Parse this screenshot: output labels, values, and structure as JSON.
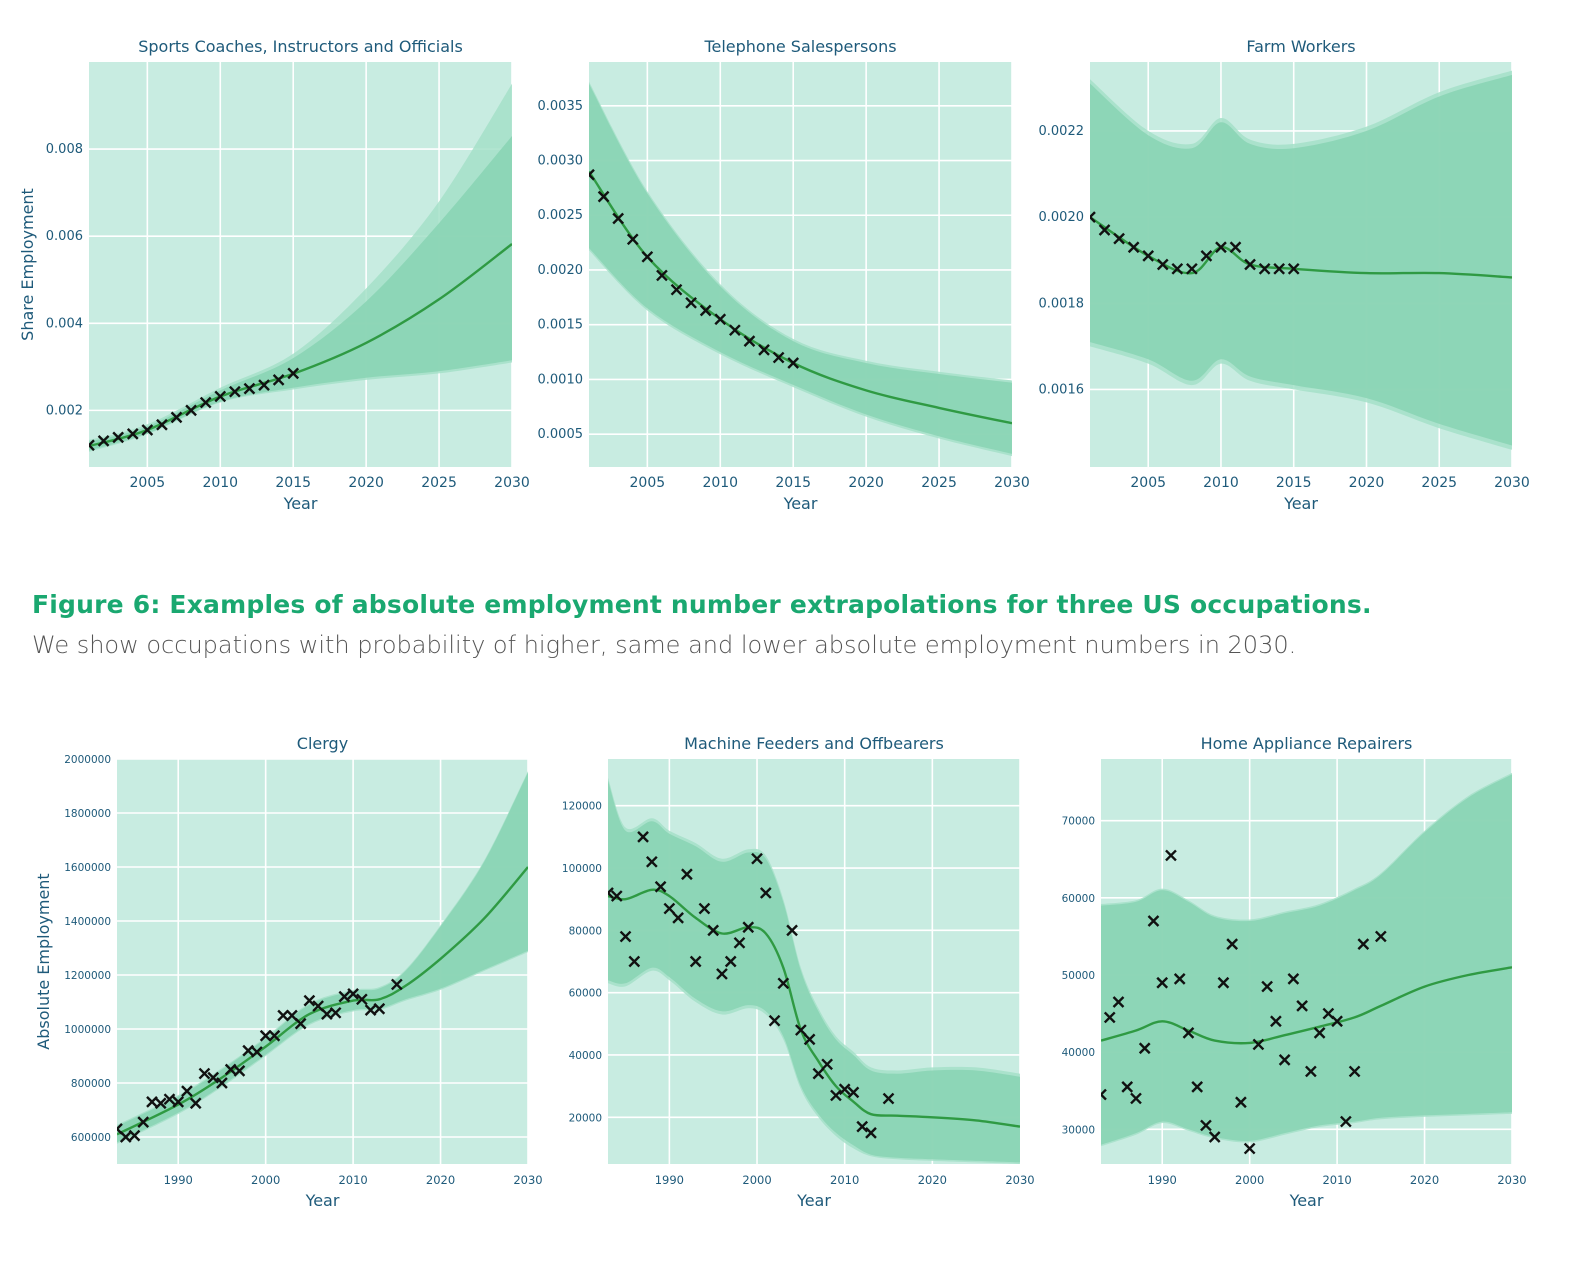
{
  "colors": {
    "plot_bg": "#c8ece1",
    "band_outer": "#a5e0c8",
    "band_inner": "#88d4b3",
    "line": "#2f9a43",
    "marker": "#111111",
    "label": "#1e5a7a",
    "grid": "#ffffff"
  },
  "caption": {
    "title": "Figure 6: Examples of absolute employment number extrapolations for three US occupations.",
    "text": "We show occupations with probability of higher, same and lower absolute employment numbers in 2030."
  },
  "chart_data": [
    {
      "type": "line",
      "title": "Sports Coaches, Instructors and Officials",
      "xlabel": "Year",
      "ylabel": "Share Employment",
      "xlim": [
        2001,
        2030
      ],
      "ylim": [
        0.0007,
        0.01
      ],
      "xticks": [
        2005,
        2010,
        2015,
        2020,
        2025,
        2030
      ],
      "yticks": [
        0.002,
        0.004,
        0.006,
        0.008
      ],
      "ytick_labels": [
        "0.002",
        "0.004",
        "0.006",
        "0.008"
      ],
      "observed": {
        "x": [
          2001,
          2002,
          2003,
          2004,
          2005,
          2006,
          2007,
          2008,
          2009,
          2010,
          2011,
          2012,
          2013,
          2014,
          2015
        ],
        "y": [
          0.0012,
          0.0013,
          0.00138,
          0.00146,
          0.00155,
          0.00167,
          0.00184,
          0.002,
          0.00218,
          0.00232,
          0.00243,
          0.0025,
          0.00258,
          0.0027,
          0.00285
        ]
      },
      "fit": {
        "x": [
          2001,
          2005,
          2010,
          2015,
          2020,
          2025,
          2030
        ],
        "y": [
          0.00118,
          0.00155,
          0.00232,
          0.00284,
          0.00355,
          0.00455,
          0.00582
        ],
        "inner_low": [
          0.00108,
          0.00147,
          0.0022,
          0.00252,
          0.00275,
          0.0029,
          0.00315
        ],
        "inner_high": [
          0.00128,
          0.00163,
          0.00246,
          0.0032,
          0.0045,
          0.0063,
          0.0083
        ],
        "outer_low": [
          0.00105,
          0.00145,
          0.00218,
          0.00248,
          0.0027,
          0.00285,
          0.0031
        ],
        "outer_high": [
          0.00132,
          0.00168,
          0.00252,
          0.0033,
          0.0048,
          0.0068,
          0.0095
        ]
      }
    },
    {
      "type": "line",
      "title": "Telephone Salespersons",
      "xlabel": "Year",
      "ylabel": "",
      "xlim": [
        2001,
        2030
      ],
      "ylim": [
        0.0002,
        0.0039
      ],
      "xticks": [
        2005,
        2010,
        2015,
        2020,
        2025,
        2030
      ],
      "yticks": [
        0.0005,
        0.001,
        0.0015,
        0.002,
        0.0025,
        0.003,
        0.0035
      ],
      "ytick_labels": [
        "0.0005",
        "0.0010",
        "0.0015",
        "0.0020",
        "0.0025",
        "0.0030",
        "0.0035"
      ],
      "observed": {
        "x": [
          2001,
          2002,
          2003,
          2004,
          2005,
          2006,
          2007,
          2008,
          2009,
          2010,
          2011,
          2012,
          2013,
          2014,
          2015
        ],
        "y": [
          0.00287,
          0.00267,
          0.00247,
          0.00228,
          0.00212,
          0.00195,
          0.00182,
          0.0017,
          0.00163,
          0.00155,
          0.00145,
          0.00135,
          0.00127,
          0.0012,
          0.00115
        ]
      },
      "fit": {
        "x": [
          2001,
          2005,
          2010,
          2015,
          2020,
          2025,
          2030
        ],
        "y": [
          0.0029,
          0.00212,
          0.00155,
          0.00115,
          0.0009,
          0.00074,
          0.0006
        ],
        "inner_low": [
          0.0022,
          0.00165,
          0.00125,
          0.00095,
          0.00068,
          0.00048,
          0.00032
        ],
        "inner_high": [
          0.0037,
          0.0027,
          0.00185,
          0.00135,
          0.00115,
          0.00105,
          0.00097
        ],
        "outer_low": [
          0.00218,
          0.00163,
          0.00123,
          0.00093,
          0.00066,
          0.00046,
          0.0003
        ],
        "outer_high": [
          0.00372,
          0.00272,
          0.00187,
          0.00137,
          0.00117,
          0.00107,
          0.00099
        ]
      }
    },
    {
      "type": "line",
      "title": "Farm Workers",
      "xlabel": "Year",
      "ylabel": "",
      "xlim": [
        2001,
        2030
      ],
      "ylim": [
        0.00142,
        0.00236
      ],
      "xticks": [
        2005,
        2010,
        2015,
        2020,
        2025,
        2030
      ],
      "yticks": [
        0.0016,
        0.0018,
        0.002,
        0.0022
      ],
      "ytick_labels": [
        "0.0016",
        "0.0018",
        "0.0020",
        "0.0022"
      ],
      "observed": {
        "x": [
          2001,
          2002,
          2003,
          2004,
          2005,
          2006,
          2007,
          2008,
          2009,
          2010,
          2011,
          2012,
          2013,
          2014,
          2015
        ],
        "y": [
          0.002,
          0.00197,
          0.00195,
          0.00193,
          0.00191,
          0.00189,
          0.00188,
          0.00188,
          0.00191,
          0.00193,
          0.00193,
          0.00189,
          0.00188,
          0.00188,
          0.00188
        ]
      },
      "fit": {
        "x": [
          2001,
          2005,
          2008,
          2010,
          2012,
          2015,
          2020,
          2025,
          2030
        ],
        "y": [
          0.002,
          0.00191,
          0.00187,
          0.00193,
          0.00189,
          0.00188,
          0.00187,
          0.00187,
          0.00186
        ],
        "inner_low": [
          0.00171,
          0.00167,
          0.00162,
          0.00167,
          0.00163,
          0.00161,
          0.00158,
          0.00152,
          0.00147
        ],
        "inner_high": [
          0.00231,
          0.00219,
          0.00216,
          0.00222,
          0.00217,
          0.00216,
          0.0022,
          0.00228,
          0.00233
        ],
        "outer_low": [
          0.0017,
          0.00166,
          0.00161,
          0.00166,
          0.00162,
          0.0016,
          0.00157,
          0.00151,
          0.00146
        ],
        "outer_high": [
          0.00232,
          0.0022,
          0.00217,
          0.00223,
          0.00218,
          0.00217,
          0.00221,
          0.00229,
          0.00234
        ]
      }
    },
    {
      "type": "line",
      "title": "Clergy",
      "xlabel": "Year",
      "ylabel": "Absolute Employment",
      "xlim": [
        1983,
        2030
      ],
      "ylim": [
        500000,
        2000000
      ],
      "xticks": [
        1990,
        2000,
        2010,
        2020,
        2030
      ],
      "yticks": [
        600000,
        800000,
        1000000,
        1200000,
        1400000,
        1600000,
        1800000,
        2000000
      ],
      "ytick_labels": [
        "600000",
        "800000",
        "1000000",
        "1200000",
        "1400000",
        "1600000",
        "1800000",
        "2000000"
      ],
      "observed": {
        "x": [
          1983,
          1984,
          1985,
          1986,
          1987,
          1988,
          1989,
          1990,
          1991,
          1992,
          1993,
          1994,
          1995,
          1996,
          1997,
          1998,
          1999,
          2000,
          2001,
          2002,
          2003,
          2004,
          2005,
          2006,
          2007,
          2008,
          2009,
          2010,
          2011,
          2012,
          2013,
          2015
        ],
        "y": [
          630000,
          600000,
          605000,
          655000,
          730000,
          725000,
          740000,
          730000,
          770000,
          725000,
          835000,
          820000,
          800000,
          850000,
          845000,
          920000,
          915000,
          975000,
          975000,
          1050000,
          1050000,
          1020000,
          1105000,
          1085000,
          1055000,
          1060000,
          1120000,
          1130000,
          1110000,
          1070000,
          1075000,
          1165000
        ]
      },
      "fit": {
        "x": [
          1983,
          1990,
          1995,
          2000,
          2005,
          2010,
          2013,
          2016,
          2020,
          2025,
          2030
        ],
        "y": [
          610000,
          720000,
          820000,
          935000,
          1055000,
          1105000,
          1110000,
          1160000,
          1260000,
          1410000,
          1600000
        ],
        "inner_low": [
          580000,
          690000,
          790000,
          905000,
          1020000,
          1070000,
          1075000,
          1110000,
          1150000,
          1220000,
          1290000
        ],
        "inner_high": [
          640000,
          750000,
          850000,
          965000,
          1090000,
          1140000,
          1150000,
          1215000,
          1380000,
          1620000,
          1950000
        ],
        "outer_low": [
          575000,
          685000,
          785000,
          900000,
          1015000,
          1065000,
          1070000,
          1105000,
          1145000,
          1215000,
          1285000
        ],
        "outer_high": [
          645000,
          755000,
          855000,
          970000,
          1095000,
          1145000,
          1155000,
          1220000,
          1385000,
          1625000,
          1955000
        ]
      }
    },
    {
      "type": "line",
      "title": "Machine Feeders and Offbearers",
      "xlabel": "Year",
      "ylabel": "",
      "xlim": [
        1983,
        2030
      ],
      "ylim": [
        5000,
        135000
      ],
      "xticks": [
        1990,
        2000,
        2010,
        2020,
        2030
      ],
      "yticks": [
        20000,
        40000,
        60000,
        80000,
        100000,
        120000
      ],
      "ytick_labels": [
        "20000",
        "40000",
        "60000",
        "80000",
        "100000",
        "120000"
      ],
      "observed": {
        "x": [
          1983,
          1984,
          1985,
          1986,
          1987,
          1988,
          1989,
          1990,
          1991,
          1992,
          1993,
          1994,
          1995,
          1996,
          1997,
          1998,
          1999,
          2000,
          2001,
          2002,
          2003,
          2004,
          2005,
          2006,
          2007,
          2008,
          2009,
          2010,
          2011,
          2012,
          2013,
          2015
        ],
        "y": [
          92000,
          91000,
          78000,
          70000,
          110000,
          102000,
          94000,
          87000,
          84000,
          98000,
          70000,
          87000,
          80000,
          66000,
          70000,
          76000,
          81000,
          103000,
          92000,
          51000,
          63000,
          80000,
          48000,
          45000,
          34000,
          37000,
          27000,
          29000,
          28000,
          17000,
          15000,
          26000
        ]
      },
      "fit": {
        "x": [
          1983,
          1985,
          1988,
          1990,
          1993,
          1996,
          1999,
          2001,
          2003,
          2005,
          2007,
          2009,
          2011,
          2013,
          2016,
          2020,
          2025,
          2030
        ],
        "y": [
          91000,
          90000,
          93000,
          91000,
          84000,
          79000,
          81000,
          79000,
          68000,
          48000,
          38000,
          30000,
          25000,
          21000,
          20500,
          20000,
          19000,
          17000
        ],
        "inner_low": [
          64000,
          63000,
          68000,
          65000,
          58000,
          54000,
          56000,
          54000,
          46000,
          30000,
          21000,
          15000,
          11000,
          8000,
          7000,
          6500,
          6000,
          5500
        ],
        "inner_high": [
          128000,
          112000,
          115000,
          111000,
          107000,
          102000,
          105000,
          103000,
          89000,
          67000,
          54000,
          45000,
          40000,
          35000,
          34000,
          35000,
          35000,
          33000
        ],
        "outer_low": [
          63000,
          62000,
          67000,
          64000,
          57000,
          53000,
          55000,
          53000,
          45000,
          29000,
          20000,
          14000,
          10000,
          7500,
          6500,
          6000,
          5500,
          5000
        ],
        "outer_high": [
          129000,
          113000,
          116000,
          112000,
          108000,
          103000,
          106000,
          104000,
          90000,
          68000,
          55000,
          46000,
          41000,
          36000,
          35000,
          36000,
          36000,
          34000
        ]
      }
    },
    {
      "type": "line",
      "title": "Home Appliance Repairers",
      "xlabel": "Year",
      "ylabel": "",
      "xlim": [
        1983,
        2030
      ],
      "ylim": [
        25500,
        78000
      ],
      "xticks": [
        1990,
        2000,
        2010,
        2020,
        2030
      ],
      "yticks": [
        30000,
        40000,
        50000,
        60000,
        70000
      ],
      "ytick_labels": [
        "30000",
        "40000",
        "50000",
        "60000",
        "70000"
      ],
      "observed": {
        "x": [
          1983,
          1984,
          1985,
          1986,
          1987,
          1988,
          1989,
          1990,
          1991,
          1992,
          1993,
          1994,
          1995,
          1996,
          1997,
          1998,
          1999,
          2000,
          2001,
          2002,
          2003,
          2004,
          2005,
          2006,
          2007,
          2008,
          2009,
          2010,
          2011,
          2012,
          2013,
          2015
        ],
        "y": [
          34500,
          44500,
          46500,
          35500,
          34000,
          40500,
          57000,
          49000,
          65500,
          49500,
          42500,
          35500,
          30500,
          29000,
          49000,
          54000,
          33500,
          27500,
          41000,
          48500,
          44000,
          39000,
          49500,
          46000,
          37500,
          42500,
          45000,
          44000,
          31000,
          37500,
          54000,
          55000
        ]
      },
      "fit": {
        "x": [
          1983,
          1987,
          1990,
          1993,
          1996,
          2000,
          2004,
          2008,
          2012,
          2015,
          2020,
          2025,
          2030
        ],
        "y": [
          41500,
          42800,
          44000,
          42800,
          41500,
          41200,
          42200,
          43300,
          44500,
          46000,
          48500,
          50000,
          51000
        ],
        "inner_low": [
          28000,
          29500,
          31000,
          30000,
          29000,
          28500,
          29500,
          30500,
          31000,
          31500,
          31800,
          32000,
          32200
        ],
        "inner_high": [
          59000,
          59500,
          61000,
          59500,
          57500,
          57000,
          58000,
          59000,
          61000,
          63000,
          68500,
          73000,
          76000
        ],
        "outer_low": [
          27800,
          29300,
          30800,
          29800,
          28800,
          28300,
          29300,
          30300,
          30800,
          31300,
          31600,
          31800,
          32000
        ],
        "outer_high": [
          59200,
          59700,
          61200,
          59700,
          57700,
          57200,
          58200,
          59200,
          61200,
          63200,
          68700,
          73200,
          76200
        ]
      }
    }
  ]
}
